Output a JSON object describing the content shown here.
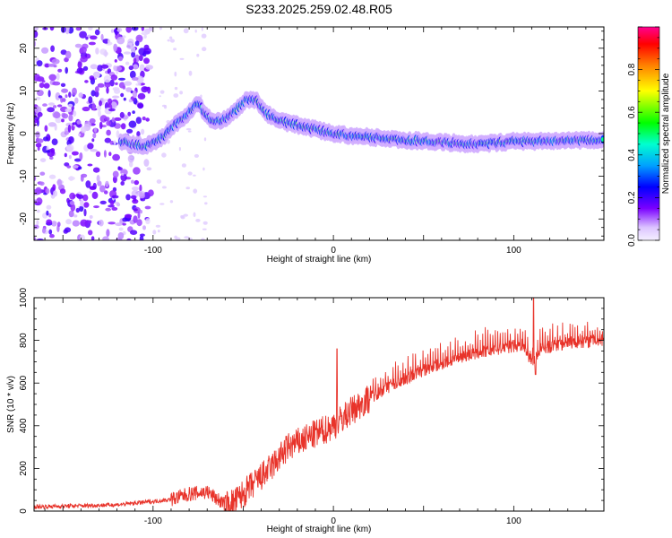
{
  "title": "S233.2025.259.02.48.R05",
  "chart_data": [
    {
      "type": "heatmap",
      "xlabel": "Height of straight line (km)",
      "ylabel": "Frequency (Hz)",
      "xlim": [
        -166,
        150
      ],
      "ylim": [
        -25,
        25
      ],
      "x_ticks": [
        -100,
        0,
        100
      ],
      "x_tick_labels": [
        "-100",
        "0",
        "100"
      ],
      "y_ticks": [
        -20,
        -10,
        0,
        10,
        20
      ],
      "y_tick_labels": [
        "-20",
        "-10",
        "0",
        "10",
        "20"
      ],
      "colorbar": {
        "label": "Normalized spectral amplitude",
        "range": [
          0,
          1
        ],
        "ticks": [
          0.0,
          0.2,
          0.4,
          0.6,
          0.8
        ],
        "tick_labels": [
          "0.0",
          "0.2",
          "0.4",
          "0.6",
          "0.8"
        ]
      },
      "ridge_center_hz": [
        [
          -115,
          -2.0
        ],
        [
          -105,
          -3.0
        ],
        [
          -95,
          -1.0
        ],
        [
          -88,
          2.0
        ],
        [
          -80,
          5.0
        ],
        [
          -75,
          7.0
        ],
        [
          -68,
          3.0
        ],
        [
          -62,
          3.0
        ],
        [
          -55,
          5.0
        ],
        [
          -48,
          8.0
        ],
        [
          -43,
          8.0
        ],
        [
          -38,
          5.0
        ],
        [
          -30,
          3.0
        ],
        [
          -20,
          2.0
        ],
        [
          -10,
          1.0
        ],
        [
          0,
          0.0
        ],
        [
          10,
          -0.5
        ],
        [
          20,
          -0.8
        ],
        [
          40,
          -1.5
        ],
        [
          60,
          -2.0
        ],
        [
          80,
          -2.5
        ],
        [
          100,
          -1.8
        ],
        [
          120,
          -1.8
        ],
        [
          150,
          -1.5
        ]
      ]
    },
    {
      "type": "line",
      "xlabel": "Height of straight line (km)",
      "ylabel": "SNR (10 * v/v)",
      "xlim": [
        -166,
        150
      ],
      "ylim": [
        0,
        1000
      ],
      "x_ticks": [
        -100,
        0,
        100
      ],
      "x_tick_labels": [
        "-100",
        "0",
        "100"
      ],
      "y_ticks": [
        0,
        200,
        400,
        600,
        800,
        1000
      ],
      "y_tick_labels": [
        "0",
        "200",
        "400",
        "600",
        "800",
        "1000"
      ],
      "series": [
        {
          "name": "SNR",
          "color": "#e8332a",
          "x": [
            -166,
            -140,
            -120,
            -100,
            -90,
            -80,
            -70,
            -60,
            -55,
            -45,
            -35,
            -25,
            -15,
            -5,
            0,
            10,
            20,
            30,
            50,
            70,
            90,
            105,
            110,
            115,
            130,
            150
          ],
          "values": [
            20,
            25,
            30,
            45,
            55,
            80,
            90,
            30,
            40,
            120,
            200,
            300,
            340,
            380,
            400,
            470,
            530,
            580,
            660,
            720,
            760,
            780,
            700,
            760,
            790,
            800
          ]
        }
      ],
      "annotations": [
        {
          "x": 2,
          "y": 760,
          "text": "spike"
        },
        {
          "x": 111,
          "y": 1000,
          "text": "spike"
        }
      ]
    }
  ]
}
